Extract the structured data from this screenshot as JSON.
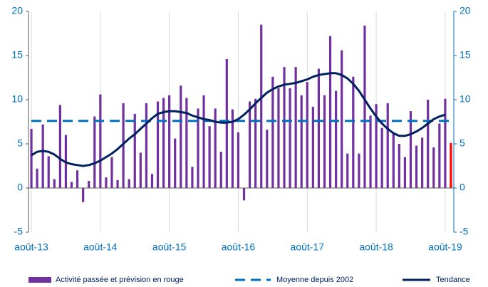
{
  "chart_data": {
    "type": "bar",
    "categories": [
      "août-13",
      null,
      null,
      null,
      null,
      null,
      null,
      null,
      null,
      null,
      null,
      null,
      "août-14",
      null,
      null,
      null,
      null,
      null,
      null,
      null,
      null,
      null,
      null,
      null,
      "août-15",
      null,
      null,
      null,
      null,
      null,
      null,
      null,
      null,
      null,
      null,
      null,
      "août-16",
      null,
      null,
      null,
      null,
      null,
      null,
      null,
      null,
      null,
      null,
      null,
      "août-17",
      null,
      null,
      null,
      null,
      null,
      null,
      null,
      null,
      null,
      null,
      null,
      "août-18",
      null,
      null,
      null,
      null,
      null,
      null,
      null,
      null,
      null,
      null,
      null,
      "août-19",
      null
    ],
    "series": [
      {
        "name": "Activité passée et prévision en rouge",
        "type": "bar",
        "color": "#7030a0",
        "colors": [
          "#7030a0",
          "#7030a0",
          "#7030a0",
          "#7030a0",
          "#7030a0",
          "#7030a0",
          "#7030a0",
          "#7030a0",
          "#7030a0",
          "#7030a0",
          "#7030a0",
          "#7030a0",
          "#7030a0",
          "#7030a0",
          "#7030a0",
          "#7030a0",
          "#7030a0",
          "#7030a0",
          "#7030a0",
          "#7030a0",
          "#7030a0",
          "#7030a0",
          "#7030a0",
          "#7030a0",
          "#7030a0",
          "#7030a0",
          "#7030a0",
          "#7030a0",
          "#7030a0",
          "#7030a0",
          "#7030a0",
          "#7030a0",
          "#7030a0",
          "#7030a0",
          "#7030a0",
          "#7030a0",
          "#7030a0",
          "#7030a0",
          "#7030a0",
          "#7030a0",
          "#7030a0",
          "#7030a0",
          "#7030a0",
          "#7030a0",
          "#7030a0",
          "#7030a0",
          "#7030a0",
          "#7030a0",
          "#7030a0",
          "#7030a0",
          "#7030a0",
          "#7030a0",
          "#7030a0",
          "#7030a0",
          "#7030a0",
          "#7030a0",
          "#7030a0",
          "#7030a0",
          "#7030a0",
          "#7030a0",
          "#7030a0",
          "#7030a0",
          "#7030a0",
          "#7030a0",
          "#7030a0",
          "#7030a0",
          "#7030a0",
          "#7030a0",
          "#7030a0",
          "#7030a0",
          "#7030a0",
          "#7030a0",
          "#7030a0",
          "#ff0000"
        ],
        "values": [
          6.7,
          2.2,
          7.2,
          3.6,
          1.0,
          9.4,
          6.0,
          0.7,
          2.0,
          -1.6,
          0.8,
          8.1,
          10.6,
          1.2,
          3.5,
          0.9,
          9.6,
          1.0,
          8.4,
          4.0,
          9.6,
          1.6,
          9.8,
          10.2,
          10.5,
          5.6,
          11.6,
          10.2,
          2.4,
          9.0,
          10.5,
          7.0,
          9.0,
          4.1,
          14.6,
          8.9,
          6.3,
          -1.4,
          9.8,
          10.1,
          18.5,
          6.6,
          12.6,
          11.3,
          13.7,
          11.3,
          13.7,
          10.5,
          12.0,
          9.2,
          13.5,
          10.5,
          17.2,
          11.0,
          15.6,
          3.9,
          12.6,
          3.9,
          18.4,
          8.2,
          9.5,
          6.8,
          9.6,
          6.3,
          5.0,
          3.5,
          8.7,
          4.8,
          5.7,
          10.0,
          4.6,
          7.3,
          10.1,
          5.1
        ]
      },
      {
        "name": "Moyenne depuis 2002",
        "type": "dashed",
        "color": "#0070c0",
        "values": [
          7.6,
          7.6,
          7.6,
          7.6,
          7.6,
          7.6,
          7.6,
          7.6,
          7.6,
          7.6,
          7.6,
          7.6,
          7.6,
          7.6,
          7.6,
          7.6,
          7.6,
          7.6,
          7.6,
          7.6,
          7.6,
          7.6,
          7.6,
          7.6,
          7.6,
          7.6,
          7.6,
          7.6,
          7.6,
          7.6,
          7.6,
          7.6,
          7.6,
          7.6,
          7.6,
          7.6,
          7.6,
          7.6,
          7.6,
          7.6,
          7.6,
          7.6,
          7.6,
          7.6,
          7.6,
          7.6,
          7.6,
          7.6,
          7.6,
          7.6,
          7.6,
          7.6,
          7.6,
          7.6,
          7.6,
          7.6,
          7.6,
          7.6,
          7.6,
          7.6,
          7.6,
          7.6,
          7.6,
          7.6,
          7.6,
          7.6,
          7.6,
          7.6,
          7.6,
          7.6,
          7.6,
          7.6,
          7.6,
          7.6
        ]
      },
      {
        "name": "Tendance",
        "type": "line",
        "color": "#002060",
        "values": [
          3.7,
          4.1,
          4.2,
          4.1,
          3.8,
          3.3,
          2.9,
          2.7,
          2.6,
          2.5,
          2.6,
          2.8,
          3.1,
          3.5,
          3.9,
          4.4,
          5.0,
          5.6,
          6.1,
          6.7,
          7.3,
          7.9,
          8.4,
          8.6,
          8.7,
          8.7,
          8.6,
          8.5,
          8.2,
          8.0,
          7.8,
          7.7,
          7.5,
          7.4,
          7.4,
          7.5,
          7.8,
          8.3,
          8.9,
          9.6,
          10.2,
          10.8,
          11.2,
          11.5,
          11.7,
          11.8,
          11.9,
          12.1,
          12.3,
          12.6,
          12.8,
          12.9,
          13.0,
          13.0,
          12.8,
          12.4,
          11.8,
          11.0,
          10.0,
          9.0,
          8.1,
          7.3,
          6.7,
          6.2,
          5.9,
          5.9,
          6.1,
          6.4,
          6.8,
          7.3,
          7.8,
          8.1,
          8.3,
          null
        ]
      }
    ],
    "ylim": [
      -5,
      20
    ],
    "yticks": [
      -5,
      0,
      5,
      10,
      15,
      20
    ],
    "y2lim": [
      -5,
      20
    ],
    "y2ticks": [
      -5,
      0,
      5,
      10,
      15,
      20
    ],
    "legend": "bottom"
  }
}
